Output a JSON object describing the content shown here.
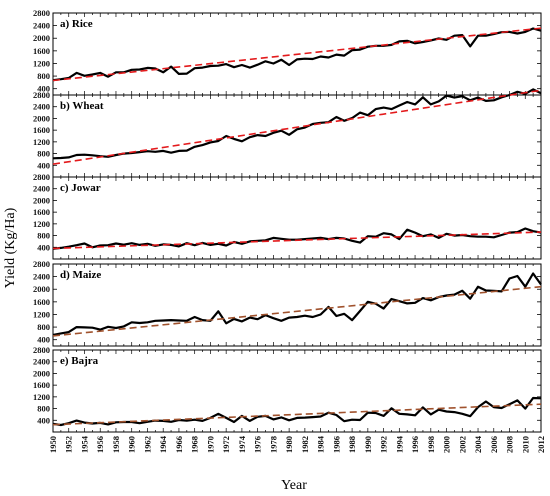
{
  "figure": {
    "xlabel": "Year",
    "ylabel": "Yield (Kg/Ha)"
  },
  "chart_data": [
    {
      "type": "line",
      "title": "a) Rice",
      "xlim": [
        1950,
        2012
      ],
      "ylim": [
        200,
        2800
      ],
      "yticks": [
        400,
        800,
        1200,
        1600,
        2000,
        2400,
        2800
      ],
      "grid": false,
      "trend_color": "#e31a1c",
      "series": [
        {
          "x": [
            1950,
            1951,
            1952,
            1953,
            1954,
            1955,
            1956,
            1957,
            1958,
            1959,
            1960,
            1961,
            1962,
            1963,
            1964,
            1965,
            1966,
            1967,
            1968,
            1969,
            1970,
            1971,
            1972,
            1973,
            1974,
            1975,
            1976,
            1977,
            1978,
            1979,
            1980,
            1981,
            1982,
            1983,
            1984,
            1985,
            1986,
            1987,
            1988,
            1989,
            1990,
            1991,
            1992,
            1993,
            1994,
            1995,
            1996,
            1997,
            1998,
            1999,
            2000,
            2001,
            2002,
            2003,
            2004,
            2005,
            2006,
            2007,
            2008,
            2009,
            2010,
            2011,
            2012
          ],
          "values": [
            668,
            700,
            740,
            900,
            810,
            850,
            900,
            780,
            920,
            920,
            1000,
            1010,
            1060,
            1040,
            920,
            1100,
            870,
            880,
            1050,
            1070,
            1120,
            1130,
            1180,
            1080,
            1150,
            1070,
            1160,
            1270,
            1200,
            1320,
            1150,
            1330,
            1350,
            1340,
            1420,
            1390,
            1480,
            1450,
            1620,
            1640,
            1730,
            1760,
            1760,
            1790,
            1900,
            1920,
            1840,
            1880,
            1930,
            1990,
            1950,
            2080,
            2100,
            1740,
            2080,
            2080,
            2130,
            2190,
            2200,
            2150,
            2200,
            2310,
            2240
          ]
        }
      ],
      "trend": {
        "x": [
          1950,
          2012
        ],
        "values": [
          660,
          2320
        ]
      }
    },
    {
      "type": "line",
      "title": "b) Wheat",
      "xlim": [
        1950,
        2012
      ],
      "ylim": [
        0,
        2800
      ],
      "yticks": [
        400,
        800,
        1200,
        1600,
        2000,
        2400,
        2800
      ],
      "grid": false,
      "trend_color": "#e31a1c",
      "series": [
        {
          "x": [
            1950,
            1951,
            1952,
            1953,
            1954,
            1955,
            1956,
            1957,
            1958,
            1959,
            1960,
            1961,
            1962,
            1963,
            1964,
            1965,
            1966,
            1967,
            1968,
            1969,
            1970,
            1971,
            1972,
            1973,
            1974,
            1975,
            1976,
            1977,
            1978,
            1979,
            1980,
            1981,
            1982,
            1983,
            1984,
            1985,
            1986,
            1987,
            1988,
            1989,
            1990,
            1991,
            1992,
            1993,
            1994,
            1995,
            1996,
            1997,
            1998,
            1999,
            2000,
            2001,
            2002,
            2003,
            2004,
            2005,
            2006,
            2007,
            2008,
            2009,
            2010,
            2011,
            2012
          ],
          "values": [
            640,
            650,
            670,
            750,
            760,
            740,
            710,
            690,
            750,
            800,
            820,
            850,
            880,
            860,
            890,
            830,
            890,
            900,
            1030,
            1090,
            1180,
            1230,
            1400,
            1300,
            1220,
            1360,
            1430,
            1400,
            1510,
            1580,
            1440,
            1630,
            1690,
            1810,
            1850,
            1870,
            2050,
            1920,
            2010,
            2200,
            2110,
            2320,
            2370,
            2320,
            2440,
            2560,
            2480,
            2720,
            2480,
            2580,
            2780,
            2710,
            2760,
            2620,
            2710,
            2600,
            2620,
            2720,
            2800,
            2910,
            2840,
            2990,
            2860
          ]
        }
      ],
      "trend": {
        "x": [
          1950,
          2012
        ],
        "values": [
          440,
          2960
        ]
      }
    },
    {
      "type": "line",
      "title": "c) Jowar",
      "xlim": [
        1950,
        2012
      ],
      "ylim": [
        0,
        2800
      ],
      "yticks": [
        400,
        800,
        1200,
        1600,
        2000,
        2400,
        2800
      ],
      "grid": false,
      "trend_color": "#e31a1c",
      "series": [
        {
          "x": [
            1950,
            1951,
            1952,
            1953,
            1954,
            1955,
            1956,
            1957,
            1958,
            1959,
            1960,
            1961,
            1962,
            1963,
            1964,
            1965,
            1966,
            1967,
            1968,
            1969,
            1970,
            1971,
            1972,
            1973,
            1974,
            1975,
            1976,
            1977,
            1978,
            1979,
            1980,
            1981,
            1982,
            1983,
            1984,
            1985,
            1986,
            1987,
            1988,
            1989,
            1990,
            1991,
            1992,
            1993,
            1994,
            1995,
            1996,
            1997,
            1998,
            1999,
            2000,
            2001,
            2002,
            2003,
            2004,
            2005,
            2006,
            2007,
            2008,
            2009,
            2010,
            2011,
            2012
          ],
          "values": [
            350,
            380,
            420,
            470,
            530,
            400,
            460,
            470,
            530,
            490,
            540,
            480,
            520,
            450,
            500,
            480,
            430,
            540,
            470,
            550,
            480,
            520,
            460,
            580,
            520,
            600,
            620,
            640,
            720,
            690,
            660,
            660,
            680,
            700,
            720,
            680,
            720,
            700,
            620,
            560,
            780,
            760,
            880,
            840,
            680,
            1000,
            900,
            780,
            840,
            720,
            860,
            800,
            820,
            780,
            760,
            760,
            740,
            820,
            900,
            920,
            1040,
            950,
            900
          ]
        }
      ],
      "trend": {
        "x": [
          1950,
          2012
        ],
        "values": [
          360,
          920
        ]
      }
    },
    {
      "type": "line",
      "title": "d) Maize",
      "xlim": [
        1950,
        2012
      ],
      "ylim": [
        200,
        2800
      ],
      "yticks": [
        400,
        800,
        1200,
        1600,
        2000,
        2400,
        2800
      ],
      "grid": false,
      "trend_color": "#a0522d",
      "series": [
        {
          "x": [
            1950,
            1951,
            1952,
            1953,
            1954,
            1955,
            1956,
            1957,
            1958,
            1959,
            1960,
            1961,
            1962,
            1963,
            1964,
            1965,
            1966,
            1967,
            1968,
            1969,
            1970,
            1971,
            1972,
            1973,
            1974,
            1975,
            1976,
            1977,
            1978,
            1979,
            1980,
            1981,
            1982,
            1983,
            1984,
            1985,
            1986,
            1987,
            1988,
            1989,
            1990,
            1991,
            1992,
            1993,
            1994,
            1995,
            1996,
            1997,
            1998,
            1999,
            2000,
            2001,
            2002,
            2003,
            2004,
            2005,
            2006,
            2007,
            2008,
            2009,
            2010,
            2011,
            2012
          ],
          "values": [
            550,
            600,
            640,
            800,
            790,
            780,
            720,
            810,
            770,
            820,
            950,
            930,
            950,
            1000,
            1010,
            1020,
            1010,
            1000,
            1120,
            1020,
            1000,
            1300,
            920,
            1060,
            980,
            1100,
            1050,
            1180,
            1080,
            1000,
            1100,
            1120,
            1160,
            1120,
            1200,
            1440,
            1150,
            1220,
            1020,
            1310,
            1600,
            1540,
            1390,
            1690,
            1620,
            1550,
            1570,
            1720,
            1650,
            1750,
            1800,
            1830,
            1950,
            1700,
            2080,
            1960,
            1950,
            1930,
            2340,
            2420,
            2080,
            2500,
            2150
          ]
        }
      ],
      "trend": {
        "x": [
          1950,
          2012
        ],
        "values": [
          520,
          2080
        ]
      }
    },
    {
      "type": "line",
      "title": "e) Bajra",
      "xlim": [
        1950,
        2012
      ],
      "ylim": [
        0,
        2800
      ],
      "yticks": [
        400,
        800,
        1200,
        1600,
        2000,
        2400,
        2800
      ],
      "grid": false,
      "trend_color": "#a0522d",
      "series": [
        {
          "x": [
            1950,
            1951,
            1952,
            1953,
            1954,
            1955,
            1956,
            1957,
            1958,
            1959,
            1960,
            1961,
            1962,
            1963,
            1964,
            1965,
            1966,
            1967,
            1968,
            1969,
            1970,
            1971,
            1972,
            1973,
            1974,
            1975,
            1976,
            1977,
            1978,
            1979,
            1980,
            1981,
            1982,
            1983,
            1984,
            1985,
            1986,
            1987,
            1988,
            1989,
            1990,
            1991,
            1992,
            1993,
            1994,
            1995,
            1996,
            1997,
            1998,
            1999,
            2000,
            2001,
            2002,
            2003,
            2004,
            2005,
            2006,
            2007,
            2008,
            2009,
            2010,
            2011,
            2012
          ],
          "values": [
            280,
            240,
            300,
            390,
            320,
            290,
            310,
            260,
            330,
            340,
            340,
            300,
            350,
            390,
            380,
            350,
            410,
            390,
            420,
            380,
            480,
            620,
            480,
            340,
            550,
            380,
            520,
            550,
            430,
            500,
            400,
            480,
            490,
            510,
            530,
            660,
            580,
            370,
            420,
            410,
            660,
            650,
            550,
            810,
            620,
            600,
            570,
            840,
            600,
            760,
            700,
            680,
            620,
            540,
            850,
            1040,
            850,
            820,
            950,
            1080,
            800,
            1160,
            1150
          ]
        }
      ],
      "trend": {
        "x": [
          1950,
          2012
        ],
        "values": [
          250,
          950
        ]
      }
    }
  ]
}
